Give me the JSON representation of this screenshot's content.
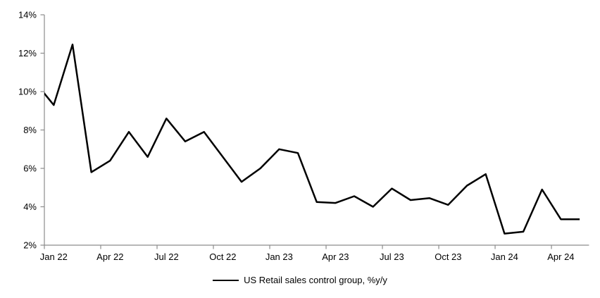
{
  "chart_data": {
    "type": "line",
    "title": "",
    "legend": "US Retail sales control group, %y/y",
    "legend_position": "bottom-center",
    "grid": false,
    "ylim": [
      2,
      14
    ],
    "ytick_step": 2,
    "ytick_labels": [
      "2%",
      "4%",
      "6%",
      "8%",
      "10%",
      "12%",
      "14%"
    ],
    "xtick_labels": [
      "Jan 22",
      "Apr 22",
      "Jul 22",
      "Oct 22",
      "Jan 23",
      "Apr 23",
      "Jul 23",
      "Oct 23",
      "Jan 24",
      "Apr 24"
    ],
    "xtick_interval_months": 3,
    "pre_point": {
      "x": "Dec 21",
      "value": 10.5,
      "note": "partially visible, clipped by left axis"
    },
    "series": [
      {
        "name": "US Retail sales control group, %y/y",
        "x": [
          "Jan 22",
          "Feb 22",
          "Mar 22",
          "Apr 22",
          "May 22",
          "Jun 22",
          "Jul 22",
          "Aug 22",
          "Sep 22",
          "Oct 22",
          "Nov 22",
          "Dec 22",
          "Jan 23",
          "Feb 23",
          "Mar 23",
          "Apr 23",
          "May 23",
          "Jun 23",
          "Jul 23",
          "Aug 23",
          "Sep 23",
          "Oct 23",
          "Nov 23",
          "Dec 23",
          "Jan 24",
          "Feb 24",
          "Mar 24",
          "Apr 24",
          "May 24"
        ],
        "values": [
          9.3,
          12.45,
          5.8,
          6.4,
          7.9,
          6.6,
          8.6,
          7.4,
          7.9,
          6.6,
          5.3,
          6.0,
          7.0,
          6.8,
          4.25,
          4.2,
          4.55,
          4.0,
          4.95,
          4.35,
          4.45,
          4.1,
          5.1,
          5.7,
          2.6,
          2.7,
          4.9,
          3.35,
          3.35
        ]
      }
    ],
    "colors": {
      "line": "#000000",
      "axis": "#8c8c8c",
      "text": "#000000",
      "background": "#ffffff"
    }
  }
}
